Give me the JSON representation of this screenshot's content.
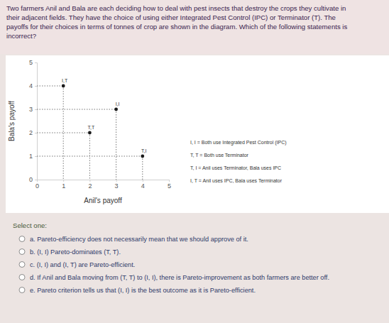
{
  "question": {
    "text_lines": [
      "Two farmers Anil and Bala are each deciding how to deal with pest insects that destroy the crops they cultivate in",
      "their adjacent fields. They have the choice of using either Integrated Pest Control (IPC) or Terminator (T). The",
      "payoffs for their choices in terms of tonnes of crop are shown in the diagram. Which of the following statements is",
      "incorrect?"
    ]
  },
  "chart_data": {
    "type": "scatter",
    "x": [
      1,
      2,
      3,
      4
    ],
    "values": [
      4,
      2,
      3,
      1
    ],
    "point_labels": [
      "I,T",
      "T,T",
      "I,I",
      "T,I"
    ],
    "color": "#1a1a1a",
    "marker": "circle",
    "line_style": "dotted",
    "x_label": "Anil's payoff",
    "y_label": "Bala's payoff",
    "xlim": [
      0,
      5
    ],
    "ylim": [
      0,
      5
    ],
    "xticks": [
      0,
      1,
      2,
      3,
      4,
      5
    ],
    "yticks": [
      0,
      1,
      2,
      3,
      4,
      5
    ],
    "grid": false,
    "annotations": [
      "I, I = Both use Integrated Pest Control (IPC)",
      "T, T = Both use Terminator",
      "T, I = Anil uses Terminator, Bala uses IPC",
      "I, T = Anil uses IPC, Bala uses Terminator"
    ]
  },
  "answer": {
    "prompt": "Select one:",
    "options": [
      "a. Pareto-efficiency does not necessarily mean that we should approve of it.",
      "b. (I, I) Pareto-dominates (T, T).",
      "c. (I, I) and (I, T) are Pareto-efficient.",
      "d. If Anil and Bala moving from (T, T) to (I, I), there is Pareto-improvement as both farmers are better off.",
      "e. Pareto criterion tells us that (I, I) is the best outcome as it is Pareto-efficient."
    ]
  }
}
